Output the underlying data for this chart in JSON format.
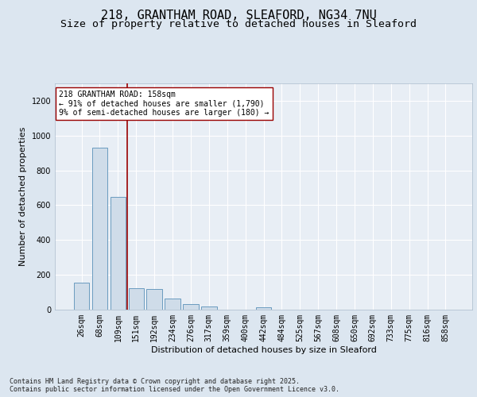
{
  "title_line1": "218, GRANTHAM ROAD, SLEAFORD, NG34 7NU",
  "title_line2": "Size of property relative to detached houses in Sleaford",
  "xlabel": "Distribution of detached houses by size in Sleaford",
  "ylabel": "Number of detached properties",
  "categories": [
    "26sqm",
    "68sqm",
    "109sqm",
    "151sqm",
    "192sqm",
    "234sqm",
    "276sqm",
    "317sqm",
    "359sqm",
    "400sqm",
    "442sqm",
    "484sqm",
    "525sqm",
    "567sqm",
    "608sqm",
    "650sqm",
    "692sqm",
    "733sqm",
    "775sqm",
    "816sqm",
    "858sqm"
  ],
  "values": [
    155,
    930,
    650,
    125,
    120,
    65,
    30,
    18,
    0,
    0,
    12,
    0,
    0,
    0,
    0,
    0,
    0,
    0,
    0,
    0,
    0
  ],
  "bar_color": "#cfdce9",
  "bar_edge_color": "#6a9bbf",
  "bar_linewidth": 0.7,
  "vline_x": 2.5,
  "vline_color": "#990000",
  "annotation_text": "218 GRANTHAM ROAD: 158sqm\n← 91% of detached houses are smaller (1,790)\n9% of semi-detached houses are larger (180) →",
  "annotation_box_color": "#ffffff",
  "annotation_box_edge": "#990000",
  "ylim": [
    0,
    1300
  ],
  "yticks": [
    0,
    200,
    400,
    600,
    800,
    1000,
    1200
  ],
  "bg_color": "#dce6f0",
  "plot_bg_color": "#e8eef5",
  "grid_color": "#ffffff",
  "title_fontsize": 11,
  "subtitle_fontsize": 9.5,
  "axis_label_fontsize": 8,
  "tick_fontsize": 7,
  "annot_fontsize": 7,
  "footnote": "Contains HM Land Registry data © Crown copyright and database right 2025.\nContains public sector information licensed under the Open Government Licence v3.0."
}
